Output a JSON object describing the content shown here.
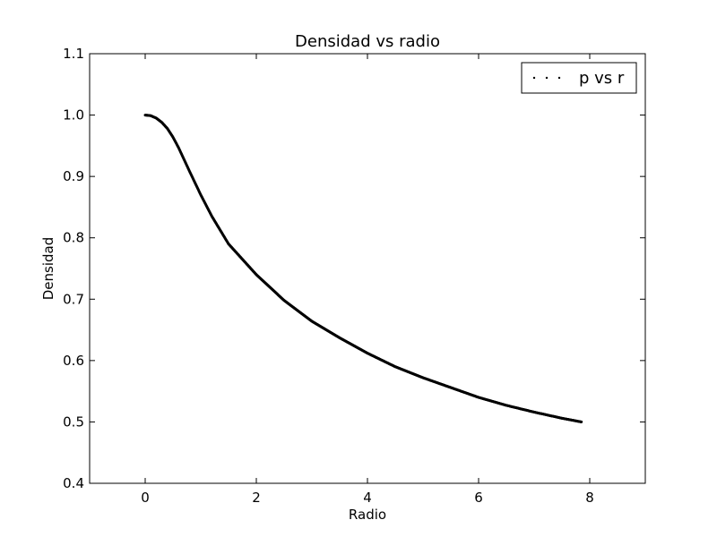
{
  "chart_data": {
    "type": "scatter",
    "title": "Densidad vs radio",
    "xlabel": "Radio",
    "ylabel": "Densidad",
    "xlim": [
      -1,
      9
    ],
    "ylim": [
      0.4,
      1.1
    ],
    "xticks": [
      0,
      2,
      4,
      6,
      8
    ],
    "yticks": [
      0.4,
      0.5,
      0.6,
      0.7,
      0.8,
      0.9,
      1.0,
      1.1
    ],
    "xtick_labels": [
      "0",
      "2",
      "4",
      "6",
      "8"
    ],
    "ytick_labels": [
      "0.4",
      "0.5",
      "0.6",
      "0.7",
      "0.8",
      "0.9",
      "1.0",
      "1.1"
    ],
    "grid": false,
    "legend": {
      "position": "top-right",
      "entries": [
        "p vs r"
      ]
    },
    "series": [
      {
        "name": "p vs r",
        "color": "#000000",
        "marker": "dot",
        "x": [
          0,
          0.1,
          0.2,
          0.3,
          0.4,
          0.5,
          0.6,
          0.8,
          1.0,
          1.2,
          1.5,
          2.0,
          2.5,
          3.0,
          3.5,
          4.0,
          4.5,
          5.0,
          5.5,
          6.0,
          6.5,
          7.0,
          7.5,
          7.85
        ],
        "y": [
          1.0,
          0.999,
          0.995,
          0.988,
          0.978,
          0.964,
          0.947,
          0.908,
          0.87,
          0.835,
          0.79,
          0.74,
          0.698,
          0.664,
          0.637,
          0.612,
          0.59,
          0.572,
          0.556,
          0.54,
          0.527,
          0.516,
          0.506,
          0.5
        ]
      }
    ]
  }
}
